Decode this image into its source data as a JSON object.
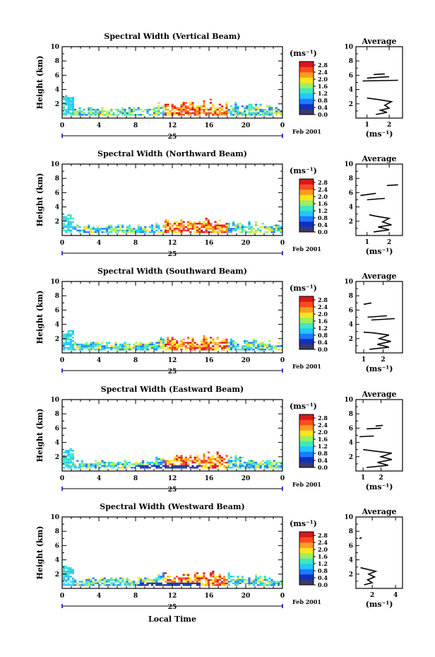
{
  "figure": {
    "x_axis_label": "Local Time",
    "date_day": "25",
    "date_month_year": "Feb 2001",
    "colorbar_unit": "(ms⁻¹)",
    "colorbar_ticks": [
      "2.8",
      "2.4",
      "2.0",
      "1.6",
      "1.2",
      "0.8",
      "0.4",
      "0.0"
    ],
    "colors": {
      "scale": [
        "#3a3a6a",
        "#1030c0",
        "#1c7cff",
        "#22c8ff",
        "#40e8c0",
        "#9cf060",
        "#ffe420",
        "#ff9c20",
        "#ff4a20",
        "#d81818"
      ]
    }
  },
  "chart_data": [
    {
      "type": "heatmap",
      "title": "Spectral Width (Vertical Beam)",
      "ylabel": "Height (km)",
      "xlim": [
        0,
        24
      ],
      "ylim": [
        0,
        10
      ],
      "x_ticks": [
        "0",
        "4",
        "8",
        "12",
        "16",
        "20",
        "0"
      ],
      "y_ticks": [
        "2",
        "4",
        "6",
        "8",
        "10"
      ],
      "color_range": [
        0.0,
        3.0
      ],
      "average": {
        "title": "Average",
        "xlabel": "(ms⁻¹)",
        "xlim": [
          0.5,
          2.6
        ],
        "x_ticks": [
          {
            "v": 1,
            "label": "1"
          },
          {
            "v": 2,
            "label": "2"
          }
        ],
        "y_ticks": [
          "2",
          "4",
          "6",
          "8",
          "10"
        ],
        "profile": [
          [
            1.4,
            0.5
          ],
          [
            1.9,
            0.8
          ],
          [
            1.6,
            1.1
          ],
          [
            2.0,
            1.4
          ],
          [
            1.8,
            1.8
          ],
          [
            2.1,
            2.3
          ],
          [
            1.5,
            2.6
          ],
          [
            1.0,
            2.8
          ],
          [
            null,
            null
          ],
          [
            0.8,
            5.2
          ],
          [
            2.4,
            5.3
          ],
          [
            null,
            null
          ],
          [
            1.0,
            5.6
          ],
          [
            2.0,
            5.8
          ],
          [
            null,
            null
          ],
          [
            1.3,
            6.1
          ],
          [
            1.8,
            6.2
          ]
        ]
      }
    },
    {
      "type": "heatmap",
      "title": "Spectral Width (Northward Beam)",
      "ylabel": "Height (km)",
      "xlim": [
        0,
        24
      ],
      "ylim": [
        0,
        10
      ],
      "x_ticks": [
        "0",
        "4",
        "8",
        "12",
        "16",
        "20",
        "0"
      ],
      "y_ticks": [
        "2",
        "4",
        "6",
        "8",
        "10"
      ],
      "color_range": [
        0.0,
        3.0
      ],
      "average": {
        "title": "Average",
        "xlabel": "(ms⁻¹)",
        "xlim": [
          0.5,
          2.6
        ],
        "x_ticks": [
          {
            "v": 1,
            "label": "1"
          },
          {
            "v": 2,
            "label": "2"
          }
        ],
        "y_ticks": [
          "2",
          "4",
          "6",
          "8",
          "10"
        ],
        "profile": [
          [
            1.3,
            0.5
          ],
          [
            2.0,
            0.8
          ],
          [
            1.5,
            1.2
          ],
          [
            2.1,
            1.5
          ],
          [
            1.7,
            1.9
          ],
          [
            2.0,
            2.4
          ],
          [
            1.4,
            2.7
          ],
          [
            1.1,
            2.9
          ],
          [
            null,
            null
          ],
          [
            1.0,
            5.0
          ],
          [
            1.8,
            5.2
          ],
          [
            null,
            null
          ],
          [
            0.7,
            5.6
          ],
          [
            1.4,
            5.9
          ],
          [
            null,
            null
          ],
          [
            1.9,
            7.0
          ],
          [
            2.4,
            7.1
          ]
        ]
      }
    },
    {
      "type": "heatmap",
      "title": "Spectral Width (Southward Beam)",
      "ylabel": "Height (km)",
      "xlim": [
        0,
        24
      ],
      "ylim": [
        0,
        10
      ],
      "x_ticks": [
        "0",
        "4",
        "8",
        "12",
        "16",
        "20",
        "0"
      ],
      "y_ticks": [
        "2",
        "4",
        "6",
        "8",
        "10"
      ],
      "color_range": [
        0.0,
        3.0
      ],
      "average": {
        "title": "Average",
        "xlabel": "(ms⁻¹)",
        "xlim": [
          0.6,
          3.0
        ],
        "x_ticks": [
          {
            "v": 1,
            "label": "1"
          },
          {
            "v": 2,
            "label": "2"
          }
        ],
        "y_ticks": [
          "2",
          "4",
          "6",
          "8",
          "10"
        ],
        "profile": [
          [
            1.3,
            0.5
          ],
          [
            2.3,
            0.8
          ],
          [
            1.7,
            1.2
          ],
          [
            2.4,
            1.6
          ],
          [
            1.8,
            2.0
          ],
          [
            2.3,
            2.5
          ],
          [
            1.5,
            2.8
          ],
          [
            1.0,
            2.9
          ],
          [
            null,
            null
          ],
          [
            1.4,
            4.6
          ],
          [
            2.6,
            4.8
          ],
          [
            null,
            null
          ],
          [
            1.2,
            5.0
          ],
          [
            2.2,
            5.2
          ],
          [
            null,
            null
          ],
          [
            1.0,
            6.8
          ],
          [
            1.4,
            7.0
          ]
        ]
      }
    },
    {
      "type": "heatmap",
      "title": "Spectral Width (Eastward Beam)",
      "ylabel": "Height (km)",
      "xlim": [
        0,
        24
      ],
      "ylim": [
        0,
        10
      ],
      "x_ticks": [
        "0",
        "4",
        "8",
        "12",
        "16",
        "20",
        "0"
      ],
      "y_ticks": [
        "2",
        "4",
        "6",
        "8",
        "10"
      ],
      "color_range": [
        0.0,
        3.0
      ],
      "average": {
        "title": "Average",
        "xlabel": "(ms⁻¹)",
        "xlim": [
          0.6,
          3.2
        ],
        "x_ticks": [
          {
            "v": 1,
            "label": "1"
          },
          {
            "v": 2,
            "label": "2"
          }
        ],
        "y_ticks": [
          "2",
          "4",
          "6",
          "8",
          "10"
        ],
        "profile": [
          [
            1.2,
            0.5
          ],
          [
            2.4,
            0.8
          ],
          [
            1.8,
            1.2
          ],
          [
            2.6,
            1.6
          ],
          [
            2.0,
            2.0
          ],
          [
            2.6,
            2.5
          ],
          [
            1.6,
            2.8
          ],
          [
            1.0,
            3.0
          ],
          [
            null,
            null
          ],
          [
            0.8,
            4.8
          ],
          [
            1.6,
            4.9
          ],
          [
            null,
            null
          ],
          [
            1.2,
            5.9
          ],
          [
            2.0,
            6.0
          ],
          [
            null,
            null
          ],
          [
            1.7,
            6.3
          ],
          [
            2.1,
            6.4
          ]
        ]
      }
    },
    {
      "type": "heatmap",
      "title": "Spectral Width (Westward Beam)",
      "ylabel": "Height (km)",
      "xlim": [
        0,
        24
      ],
      "ylim": [
        0,
        10
      ],
      "x_ticks": [
        "0",
        "4",
        "8",
        "12",
        "16",
        "20",
        "0"
      ],
      "y_ticks": [
        "2",
        "4",
        "6",
        "8",
        "10"
      ],
      "color_range": [
        0.0,
        3.0
      ],
      "average": {
        "title": "Average",
        "xlabel": "(ms⁻¹)",
        "xlim": [
          0.6,
          4.6
        ],
        "x_ticks": [
          {
            "v": 2,
            "label": "2"
          },
          {
            "v": 4,
            "label": "4"
          }
        ],
        "y_ticks": [
          "2",
          "4",
          "6",
          "8",
          "10"
        ],
        "profile": [
          [
            1.3,
            0.5
          ],
          [
            2.0,
            0.8
          ],
          [
            1.6,
            1.2
          ],
          [
            2.2,
            1.6
          ],
          [
            1.7,
            2.0
          ],
          [
            2.3,
            2.4
          ],
          [
            1.5,
            2.7
          ],
          [
            1.0,
            2.9
          ],
          [
            null,
            null
          ],
          [
            0.9,
            7.0
          ],
          [
            1.1,
            7.1
          ]
        ]
      }
    }
  ]
}
